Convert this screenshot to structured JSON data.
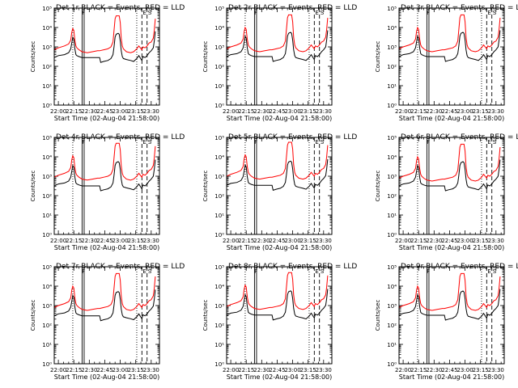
{
  "chart_data": {
    "type": "line",
    "grid": "3x3 panels",
    "title_suffix": " BLACK = Events, RED = LLD",
    "xlabel": "Start Time (02-Aug-04 21:58:00)",
    "ylabel": "Counts/sec",
    "xlim": [
      -2,
      100
    ],
    "ylim_log10": [
      0,
      5
    ],
    "x_ticks": [
      {
        "v": 2,
        "label": "22:00"
      },
      {
        "v": 17,
        "label": "22:15"
      },
      {
        "v": 32,
        "label": "22:30"
      },
      {
        "v": 47,
        "label": "22:45"
      },
      {
        "v": 62,
        "label": "23:00"
      },
      {
        "v": 77,
        "label": "23:15"
      },
      {
        "v": 92,
        "label": "23:30"
      }
    ],
    "y_ticks": [
      {
        "exp": 0,
        "label": "10⁰"
      },
      {
        "exp": 1,
        "label": "10¹"
      },
      {
        "exp": 2,
        "label": "10²"
      },
      {
        "exp": 3,
        "label": "10³"
      },
      {
        "exp": 4,
        "label": "10⁴"
      },
      {
        "exp": 5,
        "label": "10⁵"
      }
    ],
    "markers": [
      {
        "x": 16,
        "style": "dotted"
      },
      {
        "x": 25,
        "style": "solid"
      },
      {
        "x": 27,
        "style": "solid"
      },
      {
        "x": 78,
        "style": "dotted"
      },
      {
        "x": 83,
        "style": "dashed"
      },
      {
        "x": 88,
        "style": "dashed"
      }
    ],
    "marker_labels": [
      {
        "x": 24,
        "text": "F"
      },
      {
        "x": 83,
        "text": "E"
      },
      {
        "x": 88,
        "text": "S"
      }
    ],
    "series_colors": {
      "events": "#000000",
      "lld": "#ff0000"
    },
    "panels": [
      {
        "id": "panel-det-1r",
        "title": "Det 1r",
        "events_shift": 0,
        "lld_shift": 0.25
      },
      {
        "id": "panel-det-2r",
        "title": "Det 2r",
        "events_shift": 0.05,
        "lld_shift": 0.3
      },
      {
        "id": "panel-det-3r",
        "title": "Det 3r",
        "events_shift": 0.05,
        "lld_shift": 0.3
      },
      {
        "id": "panel-det-4r",
        "title": "Det 4r",
        "events_shift": 0.05,
        "lld_shift": 0.35
      },
      {
        "id": "panel-det-5r",
        "title": "Det 5r",
        "events_shift": 0.08,
        "lld_shift": 0.4
      },
      {
        "id": "panel-det-6r",
        "title": "Det 6r",
        "events_shift": 0.05,
        "lld_shift": 0.3
      },
      {
        "id": "panel-det-7r",
        "title": "Det 7r",
        "events_shift": 0.02,
        "lld_shift": 0.3
      },
      {
        "id": "panel-det-8r",
        "title": "Det 8r",
        "events_shift": 0.06,
        "lld_shift": 0.35
      },
      {
        "id": "panel-det-9r",
        "title": "Det 9r",
        "events_shift": 0.05,
        "lld_shift": 0.3
      }
    ],
    "events_curve_log10": [
      [
        -2,
        2.45
      ],
      [
        2,
        2.55
      ],
      [
        8,
        2.6
      ],
      [
        12,
        2.7
      ],
      [
        14,
        2.9
      ],
      [
        15,
        3.2
      ],
      [
        16,
        3.5
      ],
      [
        17,
        3.4
      ],
      [
        18,
        2.9
      ],
      [
        19,
        2.6
      ],
      [
        20,
        2.55
      ],
      [
        22,
        2.5
      ],
      [
        25,
        2.45
      ],
      [
        28,
        2.45
      ],
      [
        30,
        2.45
      ],
      [
        35,
        2.45
      ],
      [
        40,
        2.45
      ],
      [
        42,
        2.45
      ],
      [
        43,
        2.2
      ],
      [
        46,
        2.25
      ],
      [
        50,
        2.3
      ],
      [
        53,
        2.4
      ],
      [
        55,
        2.6
      ],
      [
        56,
        3.0
      ],
      [
        57,
        3.5
      ],
      [
        58,
        3.65
      ],
      [
        60,
        3.7
      ],
      [
        61,
        3.65
      ],
      [
        62,
        3.3
      ],
      [
        63,
        2.8
      ],
      [
        64,
        2.5
      ],
      [
        65,
        2.4
      ],
      [
        68,
        2.35
      ],
      [
        72,
        2.3
      ],
      [
        75,
        2.25
      ],
      [
        78,
        2.4
      ],
      [
        80,
        2.55
      ],
      [
        83,
        2.3
      ],
      [
        84,
        2.5
      ],
      [
        86,
        2.45
      ],
      [
        88,
        2.55
      ],
      [
        90,
        2.7
      ],
      [
        92,
        2.8
      ],
      [
        94,
        2.95
      ],
      [
        95,
        3.3
      ],
      [
        96,
        3.8
      ]
    ],
    "lld_curve_log10": [
      [
        -2,
        2.6
      ],
      [
        2,
        2.7
      ],
      [
        8,
        2.8
      ],
      [
        12,
        2.9
      ],
      [
        14,
        3.1
      ],
      [
        15,
        3.5
      ],
      [
        16,
        3.7
      ],
      [
        17,
        3.6
      ],
      [
        18,
        3.1
      ],
      [
        19,
        2.8
      ],
      [
        20,
        2.7
      ],
      [
        22,
        2.6
      ],
      [
        25,
        2.5
      ],
      [
        30,
        2.45
      ],
      [
        35,
        2.5
      ],
      [
        40,
        2.55
      ],
      [
        42,
        2.55
      ],
      [
        46,
        2.6
      ],
      [
        50,
        2.65
      ],
      [
        53,
        2.75
      ],
      [
        55,
        3.0
      ],
      [
        56,
        3.6
      ],
      [
        57,
        4.2
      ],
      [
        58,
        4.35
      ],
      [
        61,
        4.35
      ],
      [
        62,
        4.0
      ],
      [
        63,
        3.2
      ],
      [
        64,
        2.8
      ],
      [
        65,
        2.65
      ],
      [
        68,
        2.5
      ],
      [
        72,
        2.45
      ],
      [
        75,
        2.5
      ],
      [
        78,
        2.65
      ],
      [
        80,
        2.8
      ],
      [
        83,
        2.6
      ],
      [
        84,
        2.75
      ],
      [
        86,
        2.7
      ],
      [
        88,
        2.8
      ],
      [
        90,
        2.95
      ],
      [
        92,
        3.0
      ],
      [
        94,
        3.2
      ],
      [
        95,
        3.6
      ],
      [
        96,
        4.2
      ]
    ]
  }
}
